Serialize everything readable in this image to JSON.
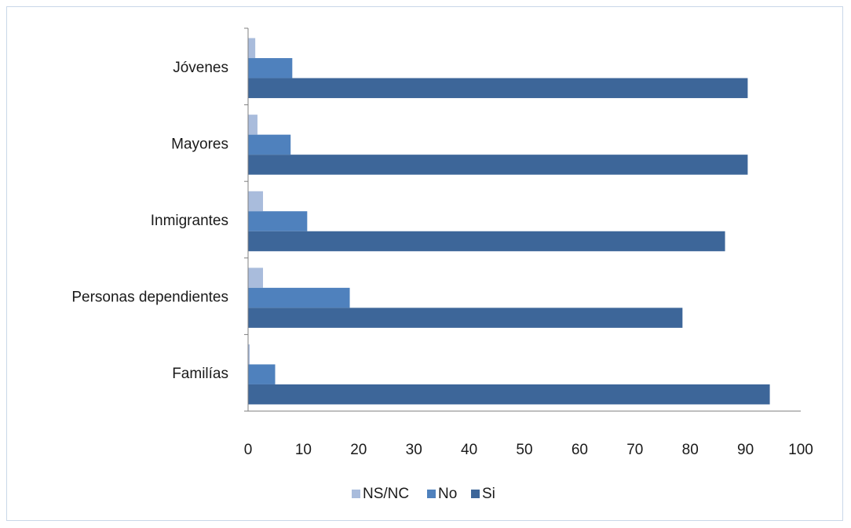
{
  "chart_data": {
    "type": "bar",
    "orientation": "horizontal",
    "categories": [
      "Jóvenes",
      "Mayores",
      "Inmigrantes",
      "Personas dependientes",
      "Familías"
    ],
    "series": [
      {
        "name": "NS/NC",
        "color": "#a9bcdc",
        "values": [
          1.3,
          1.7,
          2.7,
          2.7,
          0.3
        ]
      },
      {
        "name": "No",
        "color": "#4f81bd",
        "values": [
          8.0,
          7.7,
          10.7,
          18.4,
          4.9
        ]
      },
      {
        "name": "Si",
        "color": "#3d6699",
        "values": [
          90.4,
          90.4,
          86.3,
          78.6,
          94.4
        ]
      }
    ],
    "xlim": [
      0,
      100
    ],
    "xticks": [
      0,
      10,
      20,
      30,
      40,
      50,
      60,
      70,
      80,
      90,
      100
    ],
    "title": "",
    "xlabel": "",
    "ylabel": "",
    "grid": false,
    "legend_position": "bottom"
  }
}
